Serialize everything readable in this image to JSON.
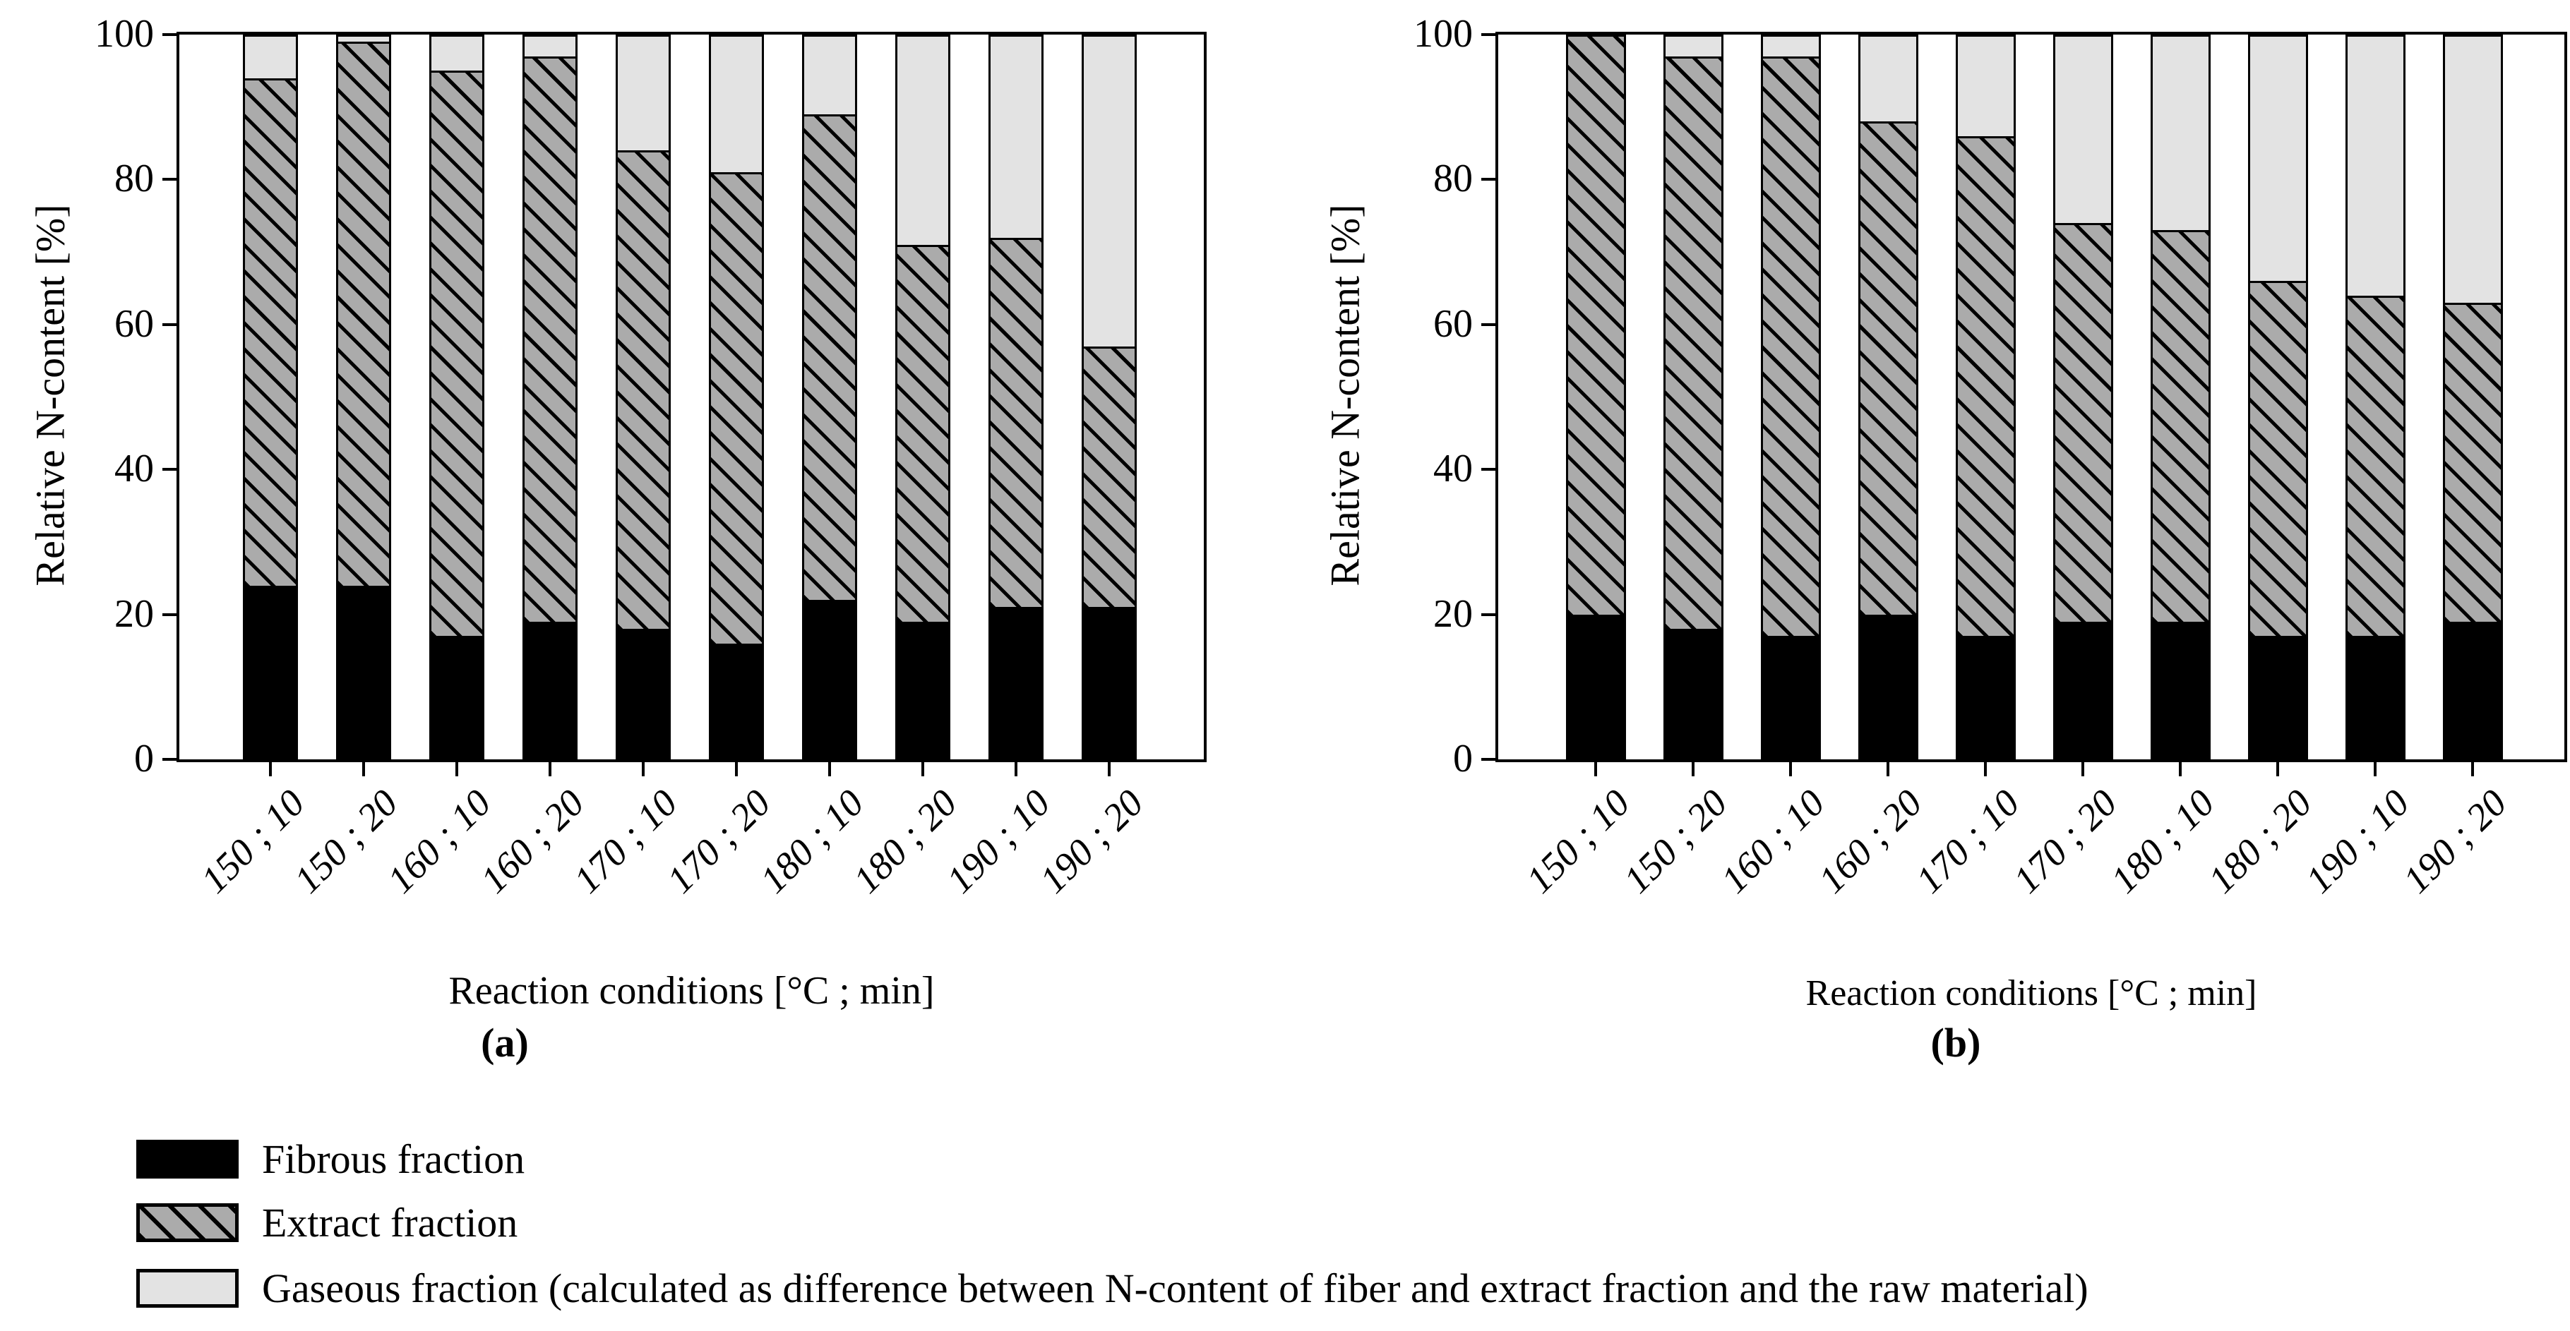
{
  "chart_data": [
    {
      "type": "bar",
      "stacked": true,
      "panel_label": "(a)",
      "xlabel": "Reaction conditions [°C ; min]",
      "ylabel": "Relative N-content [%]",
      "ylim": [
        0,
        100
      ],
      "yticks": [
        0,
        20,
        40,
        60,
        80,
        100
      ],
      "grid": false,
      "legend_position": "below-figure-shared",
      "categories": [
        "150 ; 10",
        "150 ; 20",
        "160 ; 10",
        "160 ; 20",
        "170 ; 10",
        "170 ; 20",
        "180 ; 10",
        "180 ; 20",
        "190 ; 10",
        "190 ; 20"
      ],
      "series": [
        {
          "name": "Fibrous fraction",
          "values": [
            24,
            24,
            17,
            19,
            18,
            16,
            22,
            19,
            21,
            21
          ]
        },
        {
          "name": "Extract fraction",
          "values": [
            70,
            75,
            78,
            78,
            66,
            65,
            67,
            52,
            51,
            36
          ]
        },
        {
          "name": "Gaseous fraction",
          "values": [
            6,
            1,
            5,
            3,
            16,
            19,
            11,
            29,
            28,
            43
          ]
        }
      ]
    },
    {
      "type": "bar",
      "stacked": true,
      "panel_label": "(b)",
      "xlabel": "Reaction conditions [°C ; min]",
      "ylabel": "Relative N-content [%]",
      "ylim": [
        0,
        100
      ],
      "yticks": [
        0,
        20,
        40,
        60,
        80,
        100
      ],
      "grid": false,
      "legend_position": "below-figure-shared",
      "categories": [
        "150 ; 10",
        "150 ; 20",
        "160 ; 10",
        "160 ; 20",
        "170 ; 10",
        "170 ; 20",
        "180 ; 10",
        "180 ; 20",
        "190 ; 10",
        "190 ; 20"
      ],
      "series": [
        {
          "name": "Fibrous fraction",
          "values": [
            20,
            18,
            17,
            20,
            17,
            19,
            19,
            17,
            17,
            19
          ]
        },
        {
          "name": "Extract fraction",
          "values": [
            80,
            79,
            80,
            68,
            69,
            55,
            54,
            49,
            47,
            44
          ]
        },
        {
          "name": "Gaseous fraction",
          "values": [
            0,
            3,
            3,
            12,
            14,
            26,
            27,
            34,
            36,
            37
          ]
        }
      ]
    }
  ],
  "legend": {
    "items": [
      {
        "label": "Fibrous fraction",
        "swatch": "solid-black",
        "color": "#000000"
      },
      {
        "label": "Extract fraction",
        "swatch": "black-hatch-on-gray",
        "color": "#ababab"
      },
      {
        "label": "Gaseous fraction (calculated as difference between N-content of fiber and extract fraction and the raw material)",
        "swatch": "light-gray",
        "color": "#e3e3e3"
      }
    ]
  },
  "colors": {
    "fibrous": "#000000",
    "extract_fill": "#ababab",
    "extract_hatch": "#000000",
    "gaseous": "#e3e3e3",
    "frame": "#000000"
  }
}
